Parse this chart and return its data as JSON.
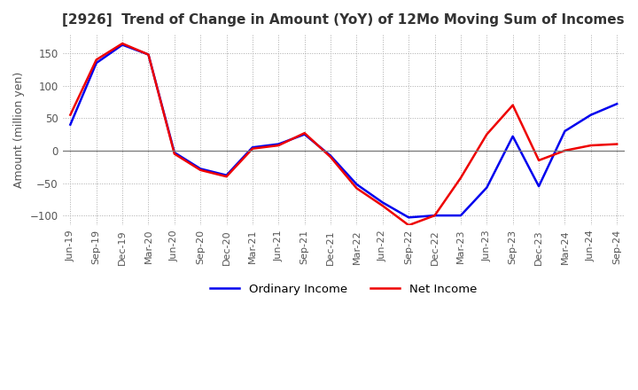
{
  "title": "[2926]  Trend of Change in Amount (YoY) of 12Mo Moving Sum of Incomes",
  "ylabel": "Amount (million yen)",
  "ylim": [
    -115,
    180
  ],
  "yticks": [
    -100,
    -50,
    0,
    50,
    100,
    150
  ],
  "x_labels": [
    "Jun-19",
    "Sep-19",
    "Dec-19",
    "Mar-20",
    "Jun-20",
    "Sep-20",
    "Dec-20",
    "Mar-21",
    "Jun-21",
    "Sep-21",
    "Dec-21",
    "Mar-22",
    "Jun-22",
    "Sep-22",
    "Dec-22",
    "Mar-23",
    "Jun-23",
    "Sep-23",
    "Dec-23",
    "Mar-24",
    "Jun-24",
    "Sep-24"
  ],
  "ordinary_income": [
    40,
    135,
    163,
    148,
    -3,
    -28,
    -38,
    5,
    10,
    25,
    -8,
    -52,
    -80,
    -103,
    -100,
    -100,
    -57,
    22,
    -55,
    30,
    55,
    72
  ],
  "net_income": [
    55,
    140,
    165,
    148,
    -5,
    -30,
    -40,
    3,
    8,
    27,
    -10,
    -58,
    -85,
    -115,
    -100,
    -42,
    25,
    70,
    -15,
    0,
    8,
    10
  ],
  "ordinary_color": "#0000ee",
  "net_color": "#ee0000",
  "background_color": "#ffffff",
  "grid_color": "#aaaaaa",
  "title_color": "#333333",
  "title_bracket_color": "#cc6600"
}
